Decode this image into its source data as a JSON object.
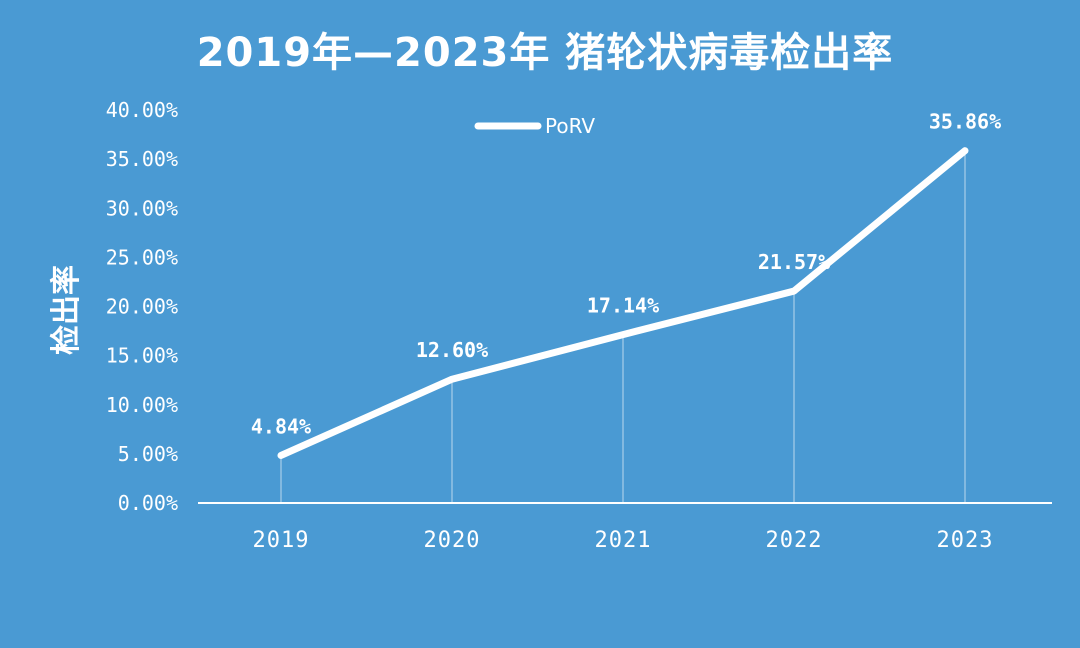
{
  "chart_data": {
    "type": "line",
    "title": "2019年—2023年 猪轮状病毒检出率",
    "ylabel": "检出率",
    "xlabel": "",
    "categories": [
      "2019",
      "2020",
      "2021",
      "2022",
      "2023"
    ],
    "series": [
      {
        "name": "PoRV",
        "values": [
          4.84,
          12.6,
          17.14,
          21.57,
          35.86
        ],
        "data_labels": [
          "4.84%",
          "12.60%",
          "17.14%",
          "21.57%",
          "35.86%"
        ]
      }
    ],
    "ylim": [
      0,
      40
    ],
    "yticks": [
      "0.00%",
      "5.00%",
      "10.00%",
      "15.00%",
      "20.00%",
      "25.00%",
      "30.00%",
      "35.00%",
      "40.00%"
    ],
    "ytick_values": [
      0,
      5,
      10,
      15,
      20,
      25,
      30,
      35,
      40
    ],
    "grid": false,
    "legend_position": "top-center",
    "colors": {
      "background": "#4a9ad3",
      "line": "#ffffff",
      "text": "#ffffff"
    }
  }
}
